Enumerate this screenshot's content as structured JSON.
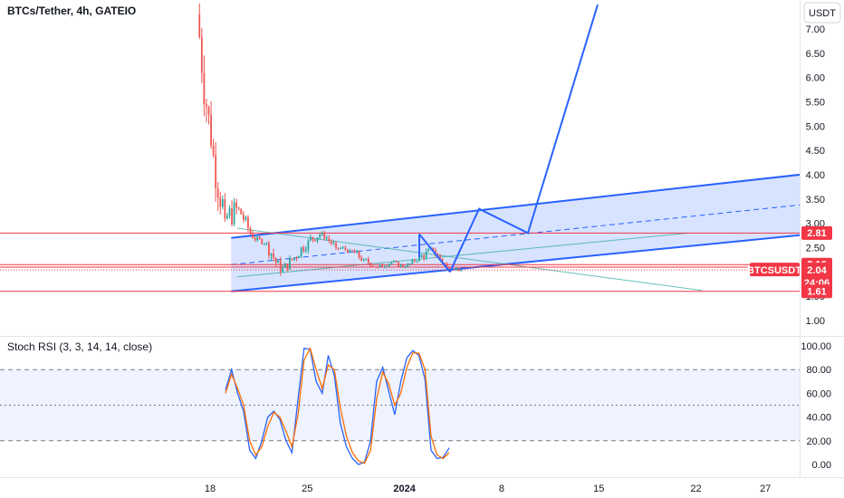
{
  "header": {
    "title": "BTCs/Tether, 4h, GATEIO"
  },
  "currency_button": "USDT",
  "indicator_label": "Stoch RSI (3, 3, 14, 14, close)",
  "colors": {
    "up": "#26a69a",
    "down": "#ef5350",
    "channel": "#2962ff",
    "level": "#f23645",
    "k": "#2962ff",
    "d": "#ff6d00"
  },
  "price_tags": [
    {
      "value": "2.81",
      "kind": "level"
    },
    {
      "value": "2.16",
      "kind": "level"
    },
    {
      "value": "2.04",
      "kind": "last",
      "symbol": "BTCSUSDT",
      "countdown": "24:06"
    },
    {
      "value": "1.61",
      "kind": "level"
    }
  ],
  "chart_data": [
    {
      "type": "candlestick",
      "title": "BTCs/Tether, 4h, GATEIO",
      "y_unit": "USDT",
      "y_ticks": [
        "1.00",
        "1.50",
        "2.00",
        "2.50",
        "3.00",
        "3.50",
        "4.00",
        "4.50",
        "5.00",
        "5.50",
        "6.00",
        "6.50",
        "7.00"
      ],
      "x_ticks": [
        "18",
        "25",
        "2024",
        "8",
        "15",
        "22",
        "27"
      ],
      "ylim": [
        0.8,
        7.2
      ],
      "last_price": 2.04,
      "horizontal_levels": [
        2.81,
        2.16,
        1.61
      ],
      "ohlc_daily_approx": [
        {
          "day": "Dec 17",
          "open": 7.3,
          "high": 7.6,
          "low": 4.2,
          "close": 4.6
        },
        {
          "day": "Dec 18",
          "open": 4.6,
          "high": 4.8,
          "low": 2.4,
          "close": 3.1
        },
        {
          "day": "Dec 19",
          "open": 3.1,
          "high": 4.1,
          "low": 2.6,
          "close": 3.3
        },
        {
          "day": "Dec 20",
          "open": 3.3,
          "high": 3.4,
          "low": 2.6,
          "close": 2.7
        },
        {
          "day": "Dec 21",
          "open": 2.7,
          "high": 2.8,
          "low": 2.45,
          "close": 2.6
        },
        {
          "day": "Dec 22",
          "open": 2.6,
          "high": 2.7,
          "low": 1.75,
          "close": 2.0
        },
        {
          "day": "Dec 23",
          "open": 2.0,
          "high": 2.45,
          "low": 1.8,
          "close": 2.3
        },
        {
          "day": "Dec 24",
          "open": 2.3,
          "high": 2.9,
          "low": 2.15,
          "close": 2.65
        },
        {
          "day": "Dec 25",
          "open": 2.65,
          "high": 3.0,
          "low": 2.4,
          "close": 2.8
        },
        {
          "day": "Dec 26",
          "open": 2.8,
          "high": 2.85,
          "low": 2.35,
          "close": 2.5
        },
        {
          "day": "Dec 27",
          "open": 2.5,
          "high": 2.65,
          "low": 2.3,
          "close": 2.45
        },
        {
          "day": "Dec 28",
          "open": 2.45,
          "high": 2.6,
          "low": 2.1,
          "close": 2.25
        },
        {
          "day": "Dec 29",
          "open": 2.25,
          "high": 2.35,
          "low": 1.95,
          "close": 2.1
        },
        {
          "day": "Dec 30",
          "open": 2.1,
          "high": 2.3,
          "low": 2.0,
          "close": 2.2
        },
        {
          "day": "Dec 31",
          "open": 2.2,
          "high": 2.25,
          "low": 2.0,
          "close": 2.1
        },
        {
          "day": "Jan 1",
          "open": 2.1,
          "high": 2.35,
          "low": 2.05,
          "close": 2.3
        },
        {
          "day": "Jan 2",
          "open": 2.3,
          "high": 2.75,
          "low": 2.2,
          "close": 2.45
        },
        {
          "day": "Jan 3",
          "open": 2.45,
          "high": 2.5,
          "low": 1.95,
          "close": 2.1
        },
        {
          "day": "Jan 4",
          "open": 2.1,
          "high": 2.2,
          "low": 2.0,
          "close": 2.04
        }
      ],
      "drawings": {
        "channel": {
          "lower": [
            [
              "Dec 19",
              1.6
            ],
            [
              "Jan 31",
              2.8
            ]
          ],
          "upper": [
            [
              "Dec 19",
              2.7
            ],
            [
              "Jan 31",
              4.05
            ]
          ],
          "midline": true
        },
        "projection_path_price": [
          2.0,
          3.3,
          2.8,
          7.5
        ]
      }
    },
    {
      "type": "line",
      "title": "Stoch RSI (3, 3, 14, 14, close)",
      "y_ticks": [
        "0.00",
        "20.00",
        "40.00",
        "60.00",
        "80.00",
        "100.00"
      ],
      "ylim": [
        -5,
        105
      ],
      "bands": [
        20,
        50,
        80
      ],
      "series": [
        {
          "values": [
            63,
            80,
            60,
            45,
            12,
            5,
            20,
            40,
            45,
            38,
            20,
            10,
            55,
            98,
            97,
            70,
            60,
            92,
            75,
            35,
            15,
            5,
            0,
            2,
            20,
            70,
            82,
            62,
            42,
            70,
            90,
            96,
            92,
            72,
            12,
            5,
            6,
            14
          ]
        },
        {
          "values": [
            60,
            76,
            64,
            50,
            20,
            8,
            15,
            32,
            44,
            40,
            28,
            15,
            42,
            88,
            98,
            80,
            64,
            84,
            80,
            48,
            24,
            10,
            3,
            1,
            12,
            55,
            78,
            68,
            50,
            60,
            82,
            94,
            94,
            80,
            24,
            8,
            5,
            10
          ]
        }
      ]
    }
  ]
}
